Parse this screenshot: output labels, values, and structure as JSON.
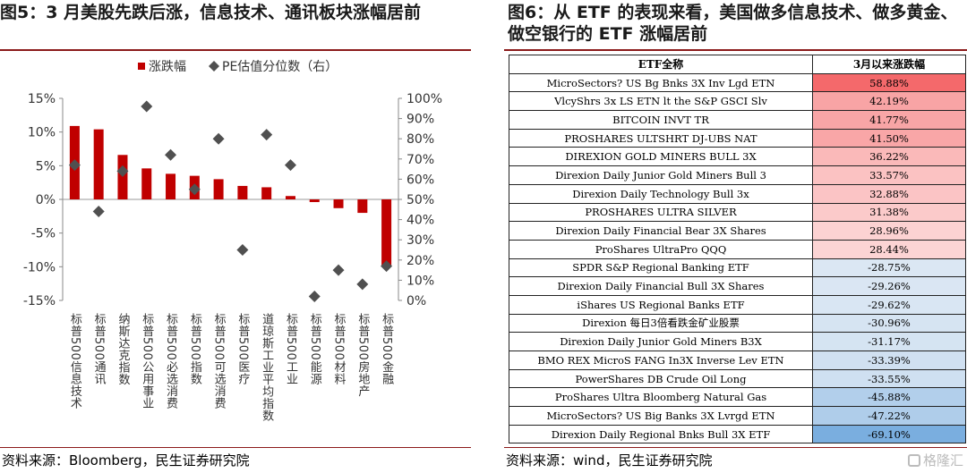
{
  "left": {
    "title": "图5：3 月美股先跌后涨，信息技术、通讯板块涨幅居前",
    "source": "资料来源：Bloomberg，民生证券研究院"
  },
  "right": {
    "title": "图6：从 ETF 的表现来看，美国做多信息技术、做多黄金、做空银行的 ETF 涨幅居前",
    "source": "资料来源：wind，民生证券研究院",
    "watermark": "格隆汇",
    "table": {
      "headers": [
        "ETF全称",
        "3月以来涨跌幅"
      ],
      "rows": [
        {
          "name": "MicroSectors? US Bg Bnks 3X Inv Lgd ETN",
          "change": "58.88%",
          "value": 58.88
        },
        {
          "name": "VlcyShrs 3x LS ETN lt the S&P GSCI Slv",
          "change": "42.19%",
          "value": 42.19
        },
        {
          "name": "BITCOIN INVT TR",
          "change": "41.77%",
          "value": 41.77
        },
        {
          "name": "PROSHARES ULTSHRT DJ-UBS NAT",
          "change": "41.50%",
          "value": 41.5
        },
        {
          "name": "DIREXION GOLD MINERS BULL 3X",
          "change": "36.22%",
          "value": 36.22
        },
        {
          "name": "Direxion Daily Junior Gold Miners Bull 3",
          "change": "33.57%",
          "value": 33.57
        },
        {
          "name": "Direxion Daily Technology Bull 3x",
          "change": "32.88%",
          "value": 32.88
        },
        {
          "name": "PROSHARES ULTRA SILVER",
          "change": "31.38%",
          "value": 31.38
        },
        {
          "name": "Direxion Daily Financial Bear 3X Shares",
          "change": "28.96%",
          "value": 28.96
        },
        {
          "name": "ProShares UltraPro QQQ",
          "change": "28.44%",
          "value": 28.44
        },
        {
          "name": "SPDR S&P Regional Banking ETF",
          "change": "-28.75%",
          "value": -28.75
        },
        {
          "name": "Direxion Daily Financial Bull 3X Shares",
          "change": "-29.26%",
          "value": -29.26
        },
        {
          "name": "iShares US Regional Banks ETF",
          "change": "-29.62%",
          "value": -29.62
        },
        {
          "name": "Direxion 每日3倍看跌金矿业股票",
          "change": "-30.96%",
          "value": -30.96
        },
        {
          "name": "Direxion Daily Junior Gold Miners B3X",
          "change": "-31.17%",
          "value": -31.17
        },
        {
          "name": "BMO REX MicroS FANG In3X Inverse Lev ETN",
          "change": "-33.39%",
          "value": -33.39
        },
        {
          "name": "PowerShares DB Crude Oil Long",
          "change": "-33.55%",
          "value": -33.55
        },
        {
          "name": "ProShares Ultra Bloomberg Natural Gas",
          "change": "-45.88%",
          "value": -45.88
        },
        {
          "name": "MicroSectors? US Big Banks 3X Lvrgd ETN",
          "change": "-47.22%",
          "value": -47.22
        },
        {
          "name": "Direxion Daily Regional Bnks Bull 3X ETF",
          "change": "-69.10%",
          "value": -69.1
        }
      ]
    }
  },
  "colors": {
    "bar": "#c00000",
    "marker": "#505050",
    "rule": "#8b1a1a",
    "positive_max": "#f4696b",
    "positive_min": "#fcd4d4",
    "negative_max": "#7aaedf",
    "negative_min": "#dbe7f3"
  },
  "chart_data": {
    "type": "bar",
    "categories": [
      "标普500信息技术",
      "标普500通讯",
      "纳斯达克指数",
      "标普500公用事业",
      "标普500必选消费",
      "标普500指数",
      "标普500可选消费",
      "标普500医疗",
      "道琼斯工业平均指数",
      "标普500工业",
      "标普500能源",
      "标普500材料",
      "标普500房地产",
      "标普500金融"
    ],
    "series": [
      {
        "name": "涨跌幅",
        "axis": "left",
        "kind": "bar",
        "values": [
          10.9,
          10.4,
          6.6,
          4.6,
          3.8,
          3.5,
          3.0,
          2.0,
          1.8,
          0.5,
          -0.4,
          -1.3,
          -2.0,
          -9.8
        ]
      },
      {
        "name": "PE估值分位数（右）",
        "axis": "right",
        "kind": "marker",
        "marker": "diamond",
        "values": [
          67,
          44,
          64,
          96,
          72,
          55,
          80,
          25,
          82,
          67,
          2,
          15,
          8,
          17
        ]
      }
    ],
    "ylim_left": [
      -15,
      15
    ],
    "yticks_left": [
      "-15%",
      "-10%",
      "-5%",
      "0%",
      "5%",
      "10%",
      "15%"
    ],
    "ylim_right": [
      0,
      100
    ],
    "yticks_right": [
      "0%",
      "10%",
      "20%",
      "30%",
      "40%",
      "50%",
      "60%",
      "70%",
      "80%",
      "90%",
      "100%"
    ],
    "legend_position": "top",
    "grid": false
  }
}
